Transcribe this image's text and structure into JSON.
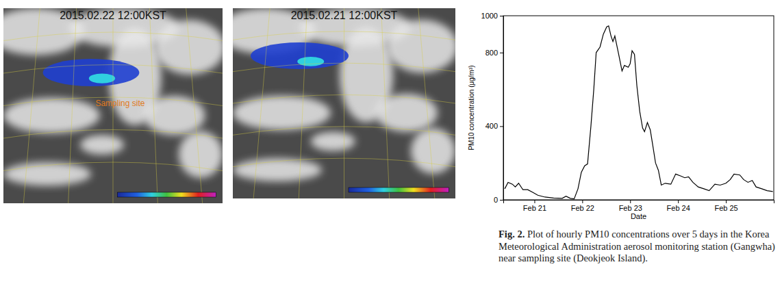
{
  "chart_data": {
    "type": "line",
    "y_label": "PM10 concentration (μg/m³)",
    "x_label": "Date",
    "x": [
      20.38,
      20.45,
      20.54,
      20.6,
      20.67,
      20.76,
      20.86,
      20.97,
      21.07,
      21.22,
      21.4,
      21.58,
      21.66,
      21.75,
      21.83,
      21.91,
      21.98,
      22.05,
      22.11,
      22.18,
      22.24,
      22.29,
      22.37,
      22.44,
      22.51,
      22.55,
      22.6,
      22.64,
      22.68,
      22.76,
      22.83,
      22.88,
      22.96,
      23.0,
      23.04,
      23.09,
      23.14,
      23.2,
      23.26,
      23.3,
      23.36,
      23.42,
      23.47,
      23.53,
      23.59,
      23.65,
      23.73,
      23.85,
      23.95,
      24.05,
      24.14,
      24.22,
      24.31,
      24.42,
      24.54,
      24.65,
      24.77,
      24.88,
      25.0,
      25.09,
      25.17,
      25.29,
      25.37,
      25.46,
      25.55,
      25.63,
      25.75,
      25.86,
      25.98
    ],
    "values": [
      60,
      95,
      85,
      70,
      90,
      55,
      55,
      40,
      25,
      15,
      10,
      8,
      20,
      8,
      5,
      60,
      150,
      185,
      195,
      400,
      600,
      800,
      830,
      900,
      940,
      945,
      890,
      860,
      890,
      790,
      700,
      730,
      720,
      740,
      810,
      790,
      620,
      480,
      390,
      370,
      420,
      380,
      300,
      200,
      160,
      80,
      90,
      85,
      140,
      130,
      120,
      125,
      95,
      70,
      60,
      50,
      85,
      80,
      90,
      110,
      140,
      135,
      110,
      95,
      105,
      70,
      60,
      50,
      45
    ],
    "color": "#000000",
    "xlim": [
      20.35,
      26.0
    ],
    "xticks": [
      {
        "value": 21,
        "label": "Feb 21"
      },
      {
        "value": 22,
        "label": "Feb 22"
      },
      {
        "value": 23,
        "label": "Feb 23"
      },
      {
        "value": 24,
        "label": "Feb 24"
      },
      {
        "value": 25,
        "label": "Feb 25"
      }
    ],
    "ylim": [
      0,
      1000
    ],
    "yticks": [
      0,
      400,
      800,
      1000
    ],
    "grid": false
  },
  "images": [
    {
      "title": "2015.02.22 12:00KST",
      "annotation": "Sampling site"
    },
    {
      "title": "2015.02.21 12:00KST"
    }
  ],
  "caption": {
    "label": "Fig. 2.",
    "text": "Plot of hourly PM10 concentrations over 5 days in the Korea Meteorological Administration aerosol monitoring station (Gangwha) near sampling site (Deokjeok Island)."
  }
}
